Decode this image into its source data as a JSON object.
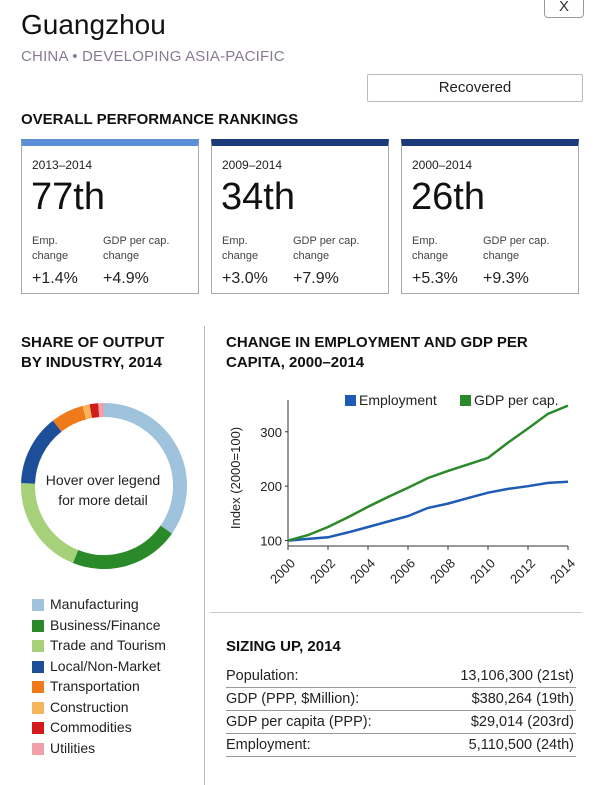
{
  "close_label": "X",
  "city": "Guangzhou",
  "subtitle": "CHINA • DEVELOPING ASIA-PACIFIC",
  "status": "Recovered",
  "rankings": {
    "title": "OVERALL PERFORMANCE RANKINGS",
    "emp_label_1": "Emp.",
    "emp_label_2": "change",
    "gdp_label_1": "GDP per cap.",
    "gdp_label_2": "change",
    "cards": [
      {
        "period": "2013–2014",
        "rank": "77th",
        "emp": "+1.4%",
        "gdp": "+4.9%"
      },
      {
        "period": "2009–2014",
        "rank": "34th",
        "emp": "+3.0%",
        "gdp": "+7.9%"
      },
      {
        "period": "2000–2014",
        "rank": "26th",
        "emp": "+5.3%",
        "gdp": "+9.3%"
      }
    ]
  },
  "share": {
    "title_1": "SHARE OF OUTPUT",
    "title_2": "BY INDUSTRY, 2014",
    "center_1": "Hover over legend",
    "center_2": "for more detail",
    "legend": [
      {
        "label": "Manufacturing",
        "color": "#9fc3dd"
      },
      {
        "label": "Business/Finance",
        "color": "#2a8a2a"
      },
      {
        "label": "Trade and Tourism",
        "color": "#a6d17a"
      },
      {
        "label": "Local/Non-Market",
        "color": "#1d4e9a"
      },
      {
        "label": "Transportation",
        "color": "#ef7a1a"
      },
      {
        "label": "Construction",
        "color": "#f5b45a"
      },
      {
        "label": "Commodities",
        "color": "#d11a1a"
      },
      {
        "label": "Utilities",
        "color": "#f0a0a8"
      }
    ]
  },
  "chart_data": {
    "type": "line",
    "title": "CHANGE IN EMPLOYMENT AND GDP PER CAPITA, 2000–2014",
    "xlabel": "",
    "ylabel": "Index (2000=100)",
    "x": [
      2000,
      2001,
      2002,
      2003,
      2004,
      2005,
      2006,
      2007,
      2008,
      2009,
      2010,
      2011,
      2012,
      2013,
      2014
    ],
    "xticks": [
      "2000",
      "2002",
      "2004",
      "2006",
      "2008",
      "2010",
      "2012",
      "2014"
    ],
    "yticks": [
      100,
      200,
      300
    ],
    "ylim": [
      90,
      340
    ],
    "grid": false,
    "legend_position": "top-right",
    "series": [
      {
        "name": "Employment",
        "color": "#1d5bb5",
        "values": [
          100,
          103,
          106,
          115,
          125,
          135,
          145,
          160,
          168,
          178,
          188,
          195,
          200,
          206,
          208
        ]
      },
      {
        "name": "GDP per cap.",
        "color": "#2a8a2a",
        "values": [
          100,
          110,
          125,
          143,
          162,
          180,
          197,
          215,
          228,
          240,
          252,
          280,
          306,
          333,
          348
        ]
      }
    ]
  },
  "sizing": {
    "title": "SIZING UP, 2014",
    "rows": [
      {
        "label": "Population:",
        "value": "13,106,300 (21st)"
      },
      {
        "label": "GDP (PPP, $Million):",
        "value": "$380,264 (19th)"
      },
      {
        "label": "GDP per capita (PPP):",
        "value": "$29,014 (203rd)"
      },
      {
        "label": "Employment:",
        "value": "5,110,500 (24th)"
      }
    ]
  }
}
